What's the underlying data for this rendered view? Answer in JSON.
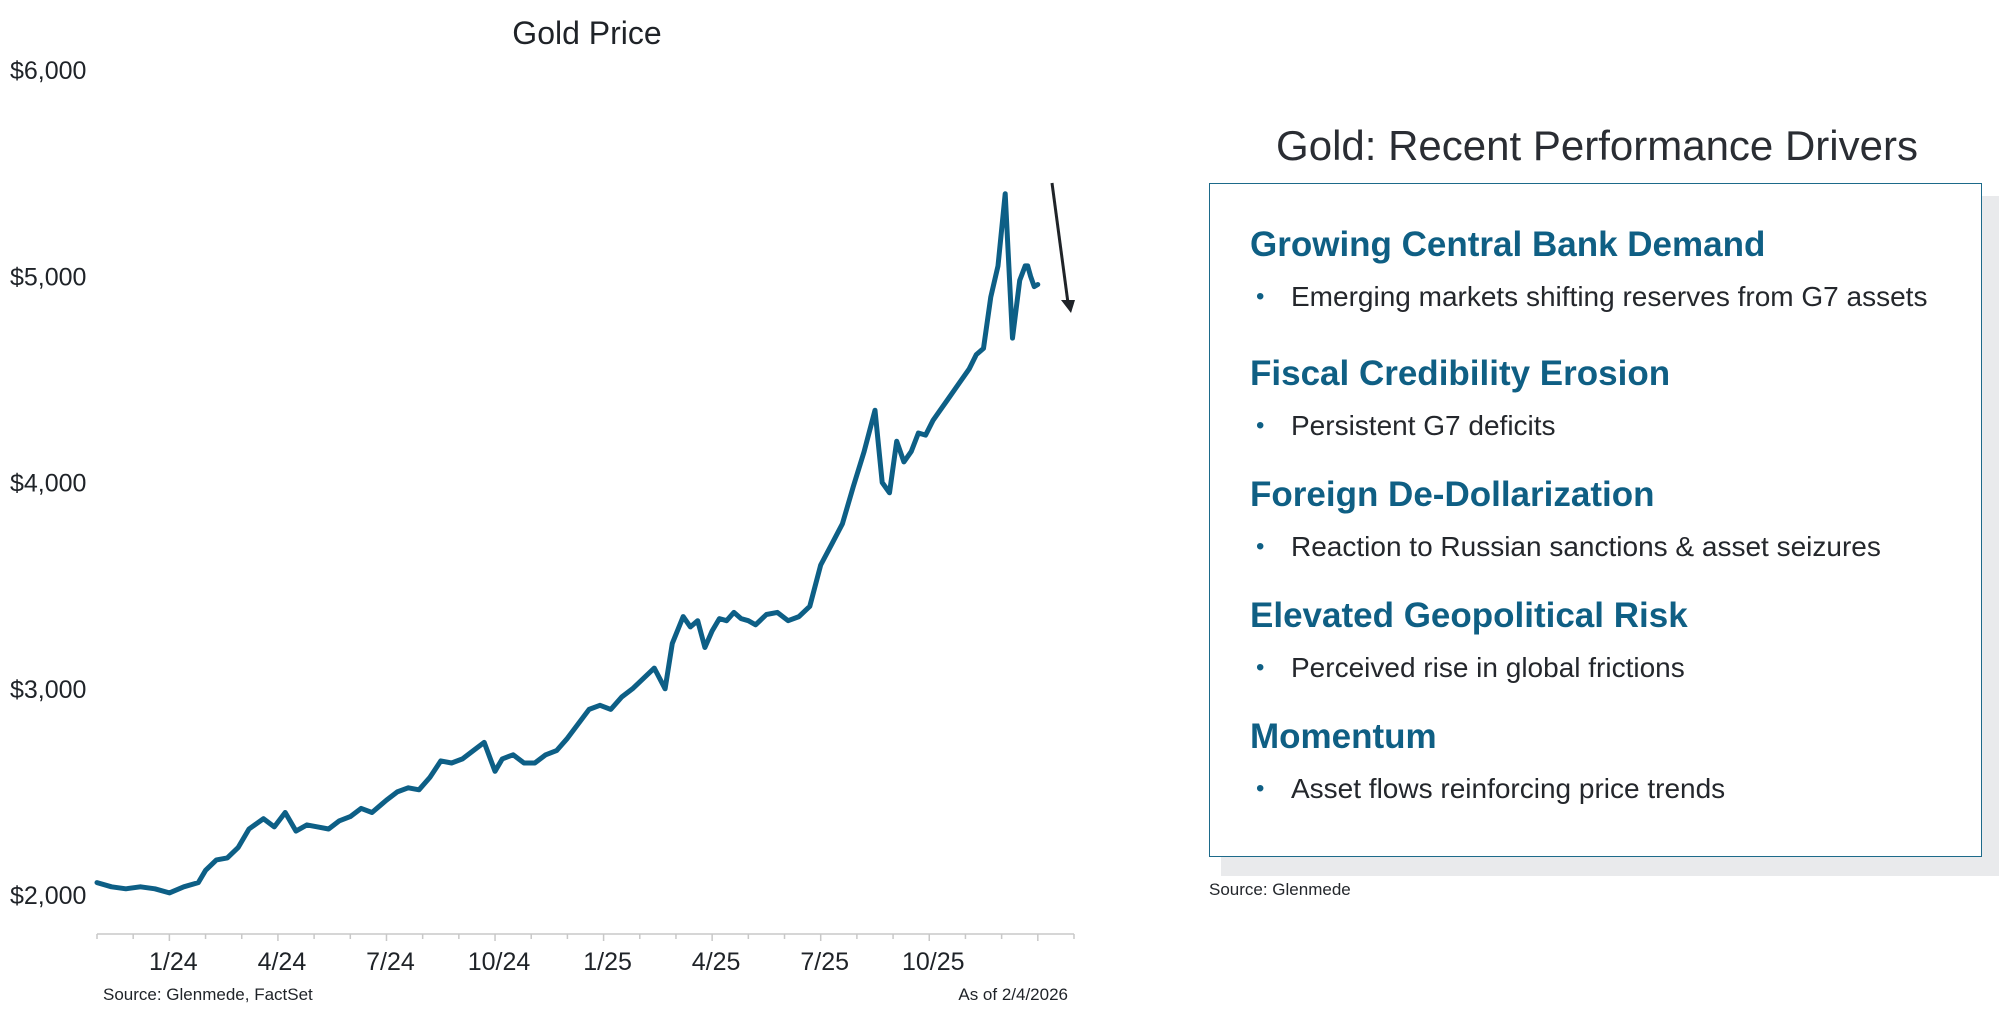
{
  "chart_data": {
    "type": "line",
    "title": "Gold Price",
    "xlabel": "",
    "ylabel": "",
    "y_ticks": [
      "$2,000",
      "$3,000",
      "$4,000",
      "$5,000",
      "$6,000"
    ],
    "ylim": [
      2000,
      6000
    ],
    "x_tick_labels": [
      "1/24",
      "4/24",
      "7/24",
      "10/24",
      "1/25",
      "4/25",
      "7/25",
      "10/25"
    ],
    "x_unit": "months since Nov 2023",
    "x_ticks": [
      2,
      5,
      8,
      11,
      14,
      17,
      20,
      23
    ],
    "xlim": [
      0,
      27
    ],
    "series": [
      {
        "name": "Gold Price",
        "color": "#0d5f86",
        "x": [
          0,
          0.4,
          0.8,
          1.2,
          1.6,
          2.0,
          2.4,
          2.8,
          3.0,
          3.3,
          3.6,
          3.9,
          4.2,
          4.6,
          4.9,
          5.2,
          5.5,
          5.8,
          6.1,
          6.4,
          6.7,
          7.0,
          7.3,
          7.6,
          8.0,
          8.3,
          8.6,
          8.9,
          9.2,
          9.5,
          9.8,
          10.1,
          10.4,
          10.7,
          11.0,
          11.2,
          11.5,
          11.8,
          12.1,
          12.4,
          12.7,
          13.0,
          13.3,
          13.6,
          13.9,
          14.2,
          14.5,
          14.8,
          15.1,
          15.4,
          15.7,
          15.9,
          16.2,
          16.4,
          16.6,
          16.8,
          17.0,
          17.2,
          17.4,
          17.6,
          17.8,
          18.0,
          18.2,
          18.5,
          18.8,
          19.1,
          19.4,
          19.7,
          20.0,
          20.3,
          20.6,
          20.9,
          21.2,
          21.5,
          21.7,
          21.9,
          22.1,
          22.3,
          22.5,
          22.7,
          22.9,
          23.1,
          23.3,
          23.5,
          23.7,
          23.9,
          24.1,
          24.3,
          24.5,
          24.7,
          24.9,
          25.1,
          25.3,
          25.5,
          25.65,
          25.72,
          25.8,
          25.9,
          26.0
        ],
        "values": [
          2060,
          2040,
          2030,
          2040,
          2030,
          2010,
          2040,
          2060,
          2120,
          2170,
          2180,
          2230,
          2320,
          2370,
          2330,
          2400,
          2310,
          2340,
          2330,
          2320,
          2360,
          2380,
          2420,
          2400,
          2460,
          2500,
          2520,
          2510,
          2570,
          2650,
          2640,
          2660,
          2700,
          2740,
          2600,
          2660,
          2680,
          2640,
          2640,
          2680,
          2700,
          2760,
          2830,
          2900,
          2920,
          2900,
          2960,
          3000,
          3050,
          3100,
          3000,
          3220,
          3350,
          3300,
          3330,
          3200,
          3280,
          3340,
          3330,
          3370,
          3340,
          3330,
          3310,
          3360,
          3370,
          3330,
          3350,
          3400,
          3600,
          3700,
          3800,
          3980,
          4150,
          4350,
          4000,
          3950,
          4200,
          4100,
          4150,
          4240,
          4230,
          4300,
          4350,
          4400,
          4450,
          4500,
          4550,
          4620,
          4650,
          4900,
          5050,
          5400,
          4700,
          4980,
          5050,
          5050,
          5000,
          4950,
          4960
        ]
      }
    ],
    "annotations": [
      "downward arrow after the latest peak"
    ],
    "source": "Source: Glenmede, FactSet",
    "as_of": "As of 2/4/2026"
  },
  "panel": {
    "title": "Gold: Recent Performance Drivers",
    "drivers": [
      {
        "heading": "Growing Central Bank Demand",
        "item": "Emerging markets shifting reserves from G7 assets"
      },
      {
        "heading": "Fiscal Credibility Erosion",
        "item": "Persistent G7 deficits"
      },
      {
        "heading": "Foreign De-Dollarization",
        "item": "Reaction to Russian sanctions & asset seizures"
      },
      {
        "heading": "Elevated Geopolitical Risk",
        "item": "Perceived rise in global frictions"
      },
      {
        "heading": "Momentum",
        "item": "Asset flows reinforcing price trends"
      }
    ],
    "source": "Source: Glenmede",
    "bullet_char": "•"
  },
  "colors": {
    "line": "#0d5f86",
    "heading": "#0f5f84",
    "panel_border": "#1d6a8a",
    "arrow": "#1f2328"
  }
}
